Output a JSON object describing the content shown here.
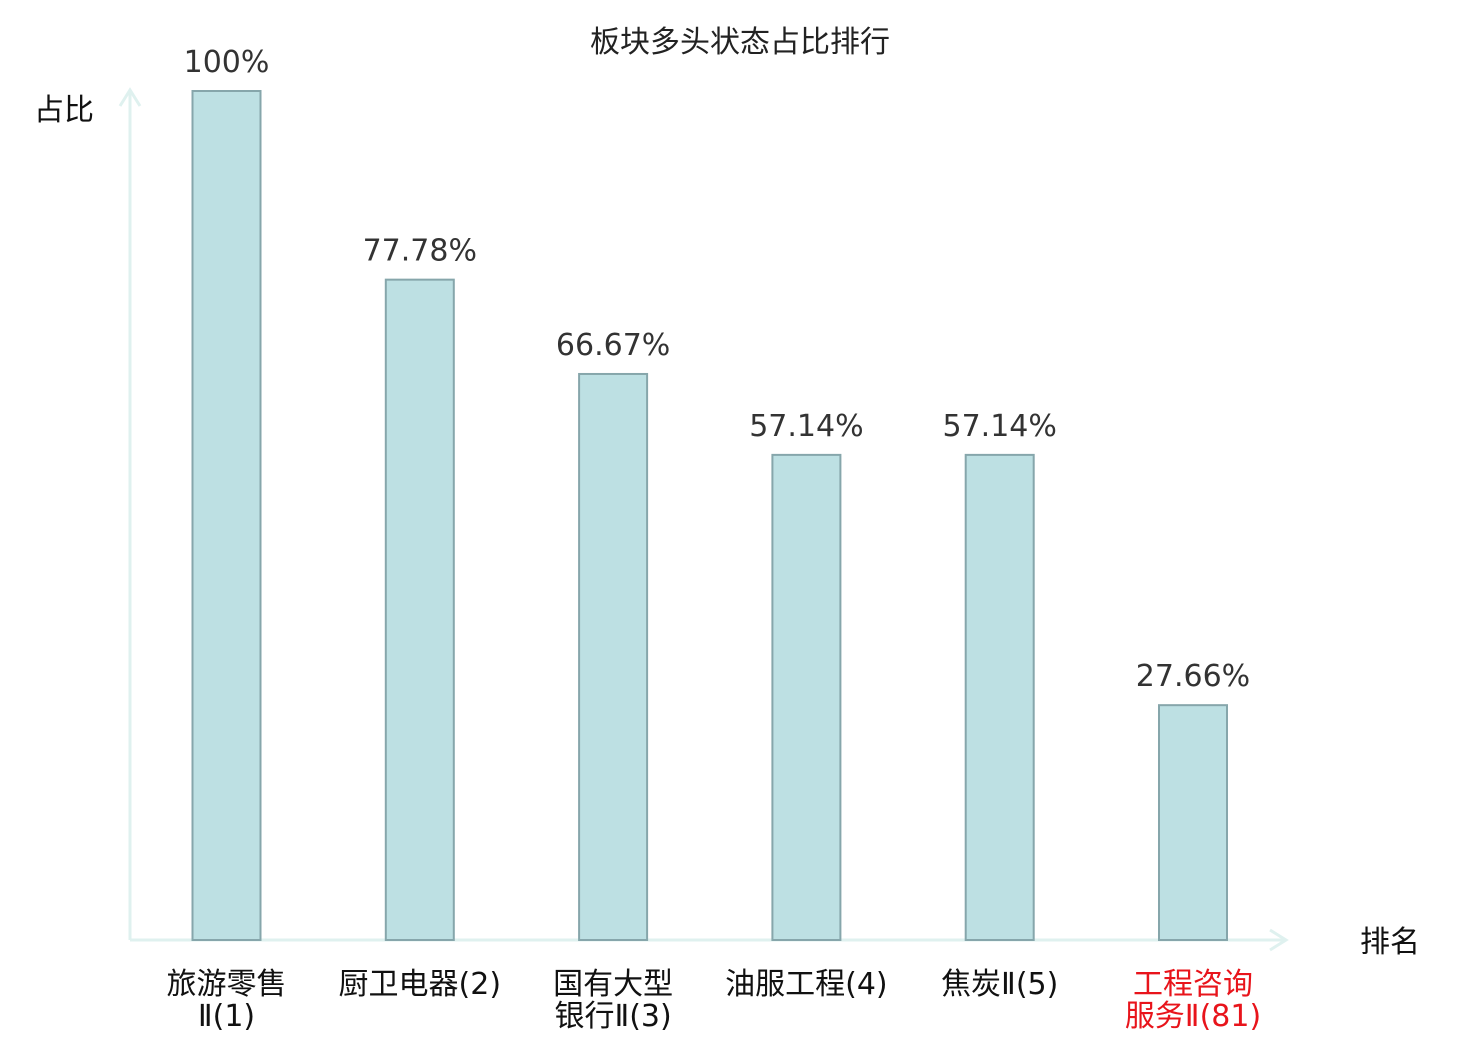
{
  "chart_data": {
    "type": "bar",
    "title": "板块多头状态占比排行",
    "ylabel": "占比",
    "xlabel": "排名",
    "ylim": [
      0,
      100
    ],
    "grid": false,
    "categories": [
      {
        "lines": [
          "旅游零售",
          "Ⅱ(1)"
        ],
        "highlight": false
      },
      {
        "lines": [
          "厨卫电器(2)"
        ],
        "highlight": false
      },
      {
        "lines": [
          "国有大型",
          "银行Ⅱ(3)"
        ],
        "highlight": false
      },
      {
        "lines": [
          "油服工程(4)"
        ],
        "highlight": false
      },
      {
        "lines": [
          "焦炭Ⅱ(5)"
        ],
        "highlight": false
      },
      {
        "lines": [
          "工程咨询",
          "服务Ⅱ(81)"
        ],
        "highlight": true
      }
    ],
    "values": [
      100,
      77.78,
      66.67,
      57.14,
      57.14,
      27.66
    ],
    "value_labels": [
      "100%",
      "77.78%",
      "66.67%",
      "57.14%",
      "57.14%",
      "27.66%"
    ]
  },
  "colors": {
    "bar_fill": "#bde0e3",
    "bar_stroke": "#86a6ab",
    "axis": "#dff1ef",
    "highlight_text": "#e8141b",
    "normal_text": "#111111"
  }
}
